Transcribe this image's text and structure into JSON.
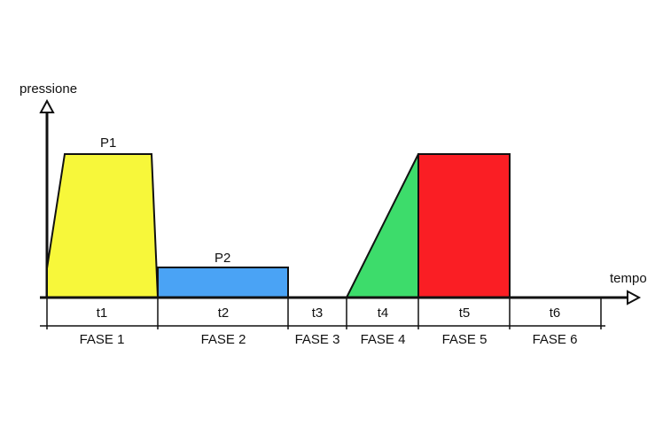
{
  "axes": {
    "y_label": "pressione",
    "x_label": "tempo"
  },
  "pressure_labels": {
    "p1": "P1",
    "p2": "P2"
  },
  "time_segments": [
    {
      "label": "t1"
    },
    {
      "label": "t2"
    },
    {
      "label": "t3"
    },
    {
      "label": "t4"
    },
    {
      "label": "t5"
    },
    {
      "label": "t6"
    }
  ],
  "phases": [
    {
      "label": "FASE 1"
    },
    {
      "label": "FASE 2"
    },
    {
      "label": "FASE 3"
    },
    {
      "label": "FASE 4"
    },
    {
      "label": "FASE 5"
    },
    {
      "label": "FASE 6"
    }
  ],
  "colors": {
    "phase1": "#f7f73a",
    "phase2": "#4aa3f5",
    "phase4": "#3ddc6b",
    "phase5": "#fa1e24",
    "line": "#111111"
  }
}
